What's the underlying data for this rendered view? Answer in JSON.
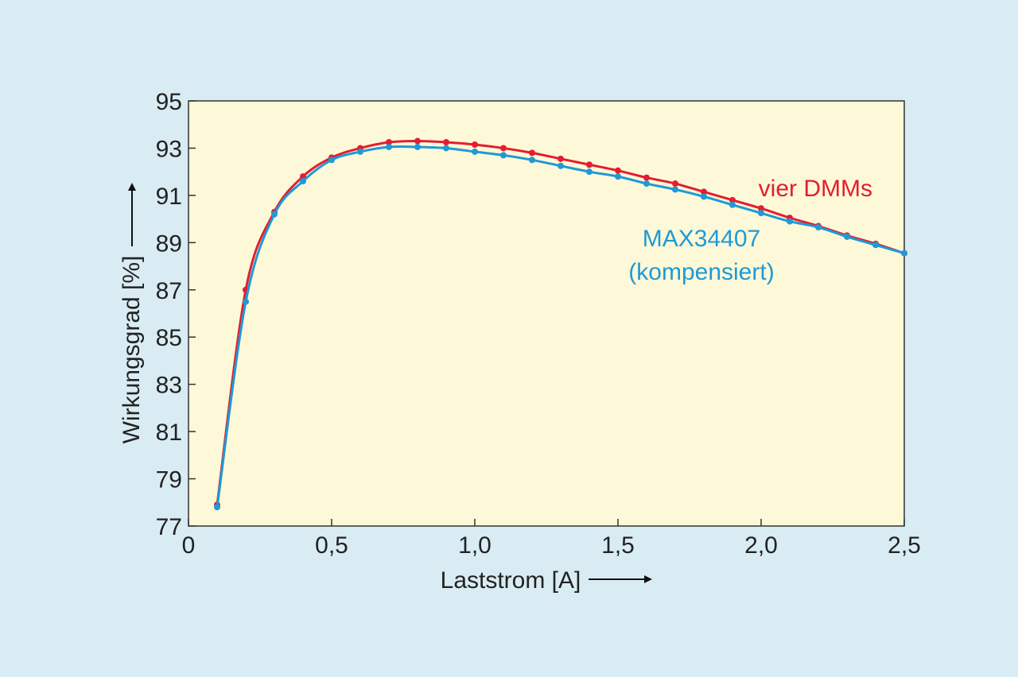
{
  "chart_data": {
    "type": "line",
    "xlabel": "Laststrom [A]",
    "ylabel": "Wirkungsgrad [%]",
    "xlim": [
      0,
      2.5
    ],
    "ylim": [
      77,
      95
    ],
    "x_ticks": [
      0,
      0.5,
      1.0,
      1.5,
      2.0,
      2.5
    ],
    "x_tick_labels": [
      "0",
      "0,5",
      "1,0",
      "1,5",
      "2,0",
      "2,5"
    ],
    "y_ticks": [
      77,
      79,
      81,
      83,
      85,
      87,
      89,
      91,
      93,
      95
    ],
    "y_tick_labels": [
      "77",
      "79",
      "81",
      "83",
      "85",
      "87",
      "89",
      "91",
      "93",
      "95"
    ],
    "grid": false,
    "plot_background": "#fdf8d8",
    "page_background": "#d9ecf3",
    "x": [
      0.1,
      0.2,
      0.3,
      0.4,
      0.5,
      0.6,
      0.7,
      0.8,
      0.9,
      1.0,
      1.1,
      1.2,
      1.3,
      1.4,
      1.5,
      1.6,
      1.7,
      1.8,
      1.9,
      2.0,
      2.1,
      2.2,
      2.3,
      2.4,
      2.5
    ],
    "series": [
      {
        "name": "vier DMMs",
        "color": "#e31e30",
        "values": [
          77.9,
          87.0,
          90.3,
          91.8,
          92.6,
          93.0,
          93.25,
          93.3,
          93.25,
          93.15,
          93.0,
          92.8,
          92.55,
          92.3,
          92.05,
          91.75,
          91.5,
          91.15,
          90.8,
          90.45,
          90.05,
          89.7,
          89.3,
          88.95,
          88.55
        ]
      },
      {
        "name": "MAX34407 (kompensiert)",
        "color": "#1e9ad6",
        "values": [
          77.8,
          86.5,
          90.2,
          91.6,
          92.5,
          92.85,
          93.05,
          93.05,
          93.0,
          92.85,
          92.7,
          92.5,
          92.25,
          92.0,
          91.8,
          91.5,
          91.25,
          90.95,
          90.6,
          90.25,
          89.9,
          89.65,
          89.25,
          88.9,
          88.55
        ]
      }
    ],
    "annotations": [
      {
        "text": "vier DMMs",
        "color": "#e31e30",
        "lines": [
          "vier DMMs"
        ]
      },
      {
        "text": "MAX34407 (kompensiert)",
        "color": "#1e9ad6",
        "lines": [
          "MAX34407",
          "(kompensiert)"
        ]
      }
    ]
  }
}
